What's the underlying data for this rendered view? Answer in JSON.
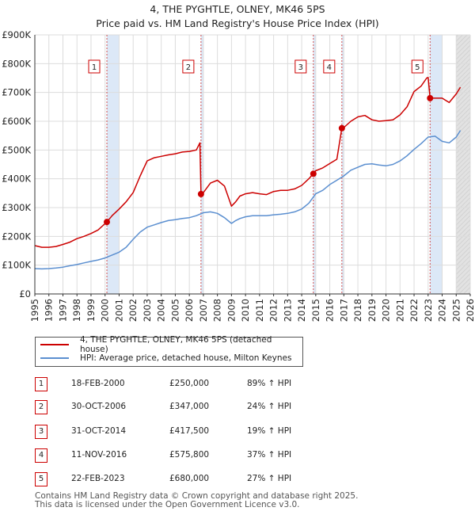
{
  "header": {
    "title_line1": "4, THE PYGHTLE, OLNEY, MK46 5PS",
    "title_line2": "Price paid vs. HM Land Registry's House Price Index (HPI)"
  },
  "legend": {
    "red_label": "4, THE PYGHTLE, OLNEY, MK46 5PS (detached house)",
    "blue_label": "HPI: Average price, detached house, Milton Keynes"
  },
  "transactions": [
    {
      "num": "1",
      "date": "18-FEB-2000",
      "price": "£250,000",
      "pct": "89% ↑ HPI"
    },
    {
      "num": "2",
      "date": "30-OCT-2006",
      "price": "£347,000",
      "pct": "24% ↑ HPI"
    },
    {
      "num": "3",
      "date": "31-OCT-2014",
      "price": "£417,500",
      "pct": "19% ↑ HPI"
    },
    {
      "num": "4",
      "date": "11-NOV-2016",
      "price": "£575,800",
      "pct": "37% ↑ HPI"
    },
    {
      "num": "5",
      "date": "22-FEB-2023",
      "price": "£680,000",
      "pct": "27% ↑ HPI"
    }
  ],
  "footer": {
    "line1": "Contains HM Land Registry data © Crown copyright and database right 2025.",
    "line2": "This data is licensed under the Open Government Licence v3.0."
  },
  "chart_data": {
    "type": "line",
    "title": "Price paid vs. HM Land Registry's House Price Index (HPI)",
    "xlabel": "",
    "ylabel": "",
    "xlim": [
      1995,
      2026
    ],
    "ylim": [
      0,
      900000
    ],
    "grid": true,
    "x_ticks": [
      1995,
      1996,
      1997,
      1998,
      1999,
      2000,
      2001,
      2002,
      2003,
      2004,
      2005,
      2006,
      2007,
      2008,
      2009,
      2010,
      2011,
      2012,
      2013,
      2014,
      2015,
      2016,
      2017,
      2018,
      2019,
      2020,
      2021,
      2022,
      2023,
      2024,
      2025,
      2026
    ],
    "y_ticks": [
      0,
      100000,
      200000,
      300000,
      400000,
      500000,
      600000,
      700000,
      800000,
      900000
    ],
    "y_tick_labels": [
      "£0",
      "£100K",
      "£200K",
      "£300K",
      "£400K",
      "£500K",
      "£600K",
      "£700K",
      "£800K",
      "£900K"
    ],
    "colors": {
      "price_line": "#cc0000",
      "hpi_line": "#5b8fd0",
      "sale_shade": "#dce8f7",
      "future_shade": "#e2e2e2",
      "marker_line": "#d05050",
      "grid": "#dcdcdc"
    },
    "series": [
      {
        "name": "4, THE PYGHTLE, OLNEY, MK46 5PS (detached house)",
        "color": "#cc0000",
        "x": [
          1995.0,
          1995.5,
          1996.0,
          1996.5,
          1997.0,
          1997.5,
          1998.0,
          1998.5,
          1999.0,
          1999.5,
          2000.13,
          2000.5,
          2001.0,
          2001.5,
          2002.0,
          2002.5,
          2003.0,
          2003.5,
          2004.0,
          2004.5,
          2005.0,
          2005.5,
          2006.0,
          2006.5,
          2006.75,
          2006.83,
          2007.0,
          2007.5,
          2008.0,
          2008.5,
          2009.0,
          2009.3,
          2009.6,
          2010.0,
          2010.5,
          2011.0,
          2011.5,
          2012.0,
          2012.5,
          2013.0,
          2013.5,
          2014.0,
          2014.5,
          2014.83,
          2015.0,
          2015.5,
          2016.0,
          2016.5,
          2016.86,
          2017.0,
          2017.5,
          2018.0,
          2018.5,
          2019.0,
          2019.5,
          2020.0,
          2020.5,
          2021.0,
          2021.5,
          2022.0,
          2022.5,
          2022.9,
          2023.0,
          2023.14,
          2023.5,
          2024.0,
          2024.5,
          2025.0,
          2025.3
        ],
        "values": [
          168000,
          162000,
          162000,
          165000,
          172000,
          180000,
          192000,
          200000,
          210000,
          222000,
          250000,
          272000,
          295000,
          320000,
          352000,
          410000,
          462000,
          473000,
          478000,
          483000,
          487000,
          493000,
          495000,
          500000,
          525000,
          347000,
          352000,
          385000,
          395000,
          375000,
          305000,
          320000,
          340000,
          348000,
          352000,
          348000,
          345000,
          356000,
          360000,
          360000,
          365000,
          377000,
          400000,
          417500,
          428000,
          438000,
          453000,
          468000,
          575800,
          578000,
          600000,
          615000,
          620000,
          605000,
          600000,
          602000,
          605000,
          622000,
          650000,
          703000,
          722000,
          750000,
          752000,
          680000,
          680000,
          680000,
          665000,
          695000,
          718000
        ]
      },
      {
        "name": "HPI: Average price, detached house, Milton Keynes",
        "color": "#5b8fd0",
        "x": [
          1995.0,
          1995.5,
          1996.0,
          1996.5,
          1997.0,
          1997.5,
          1998.0,
          1998.5,
          1999.0,
          1999.5,
          2000.0,
          2000.5,
          2001.0,
          2001.5,
          2002.0,
          2002.5,
          2003.0,
          2003.5,
          2004.0,
          2004.5,
          2005.0,
          2005.5,
          2006.0,
          2006.5,
          2007.0,
          2007.5,
          2008.0,
          2008.5,
          2009.0,
          2009.3,
          2009.6,
          2010.0,
          2010.5,
          2011.0,
          2011.5,
          2012.0,
          2012.5,
          2013.0,
          2013.5,
          2014.0,
          2014.5,
          2015.0,
          2015.5,
          2016.0,
          2016.5,
          2017.0,
          2017.5,
          2018.0,
          2018.5,
          2019.0,
          2019.5,
          2020.0,
          2020.5,
          2021.0,
          2021.5,
          2022.0,
          2022.5,
          2023.0,
          2023.5,
          2024.0,
          2024.5,
          2025.0,
          2025.3
        ],
        "values": [
          88000,
          87000,
          88000,
          90000,
          93000,
          98000,
          102000,
          108000,
          113000,
          118000,
          125000,
          135000,
          145000,
          162000,
          190000,
          215000,
          232000,
          240000,
          248000,
          255000,
          258000,
          262000,
          265000,
          272000,
          282000,
          285000,
          280000,
          265000,
          245000,
          255000,
          262000,
          268000,
          272000,
          272000,
          272000,
          275000,
          277000,
          280000,
          285000,
          295000,
          315000,
          348000,
          360000,
          380000,
          395000,
          410000,
          430000,
          440000,
          450000,
          452000,
          448000,
          445000,
          450000,
          462000,
          480000,
          502000,
          522000,
          545000,
          548000,
          530000,
          525000,
          545000,
          568000
        ]
      }
    ],
    "sales": [
      {
        "num": "1",
        "x": 2000.13,
        "value": 250000
      },
      {
        "num": "2",
        "x": 2006.83,
        "value": 347000
      },
      {
        "num": "3",
        "x": 2014.83,
        "value": 417500
      },
      {
        "num": "4",
        "x": 2016.86,
        "value": 575800
      },
      {
        "num": "5",
        "x": 2023.14,
        "value": 680000
      }
    ],
    "future_from": 2025.0
  }
}
